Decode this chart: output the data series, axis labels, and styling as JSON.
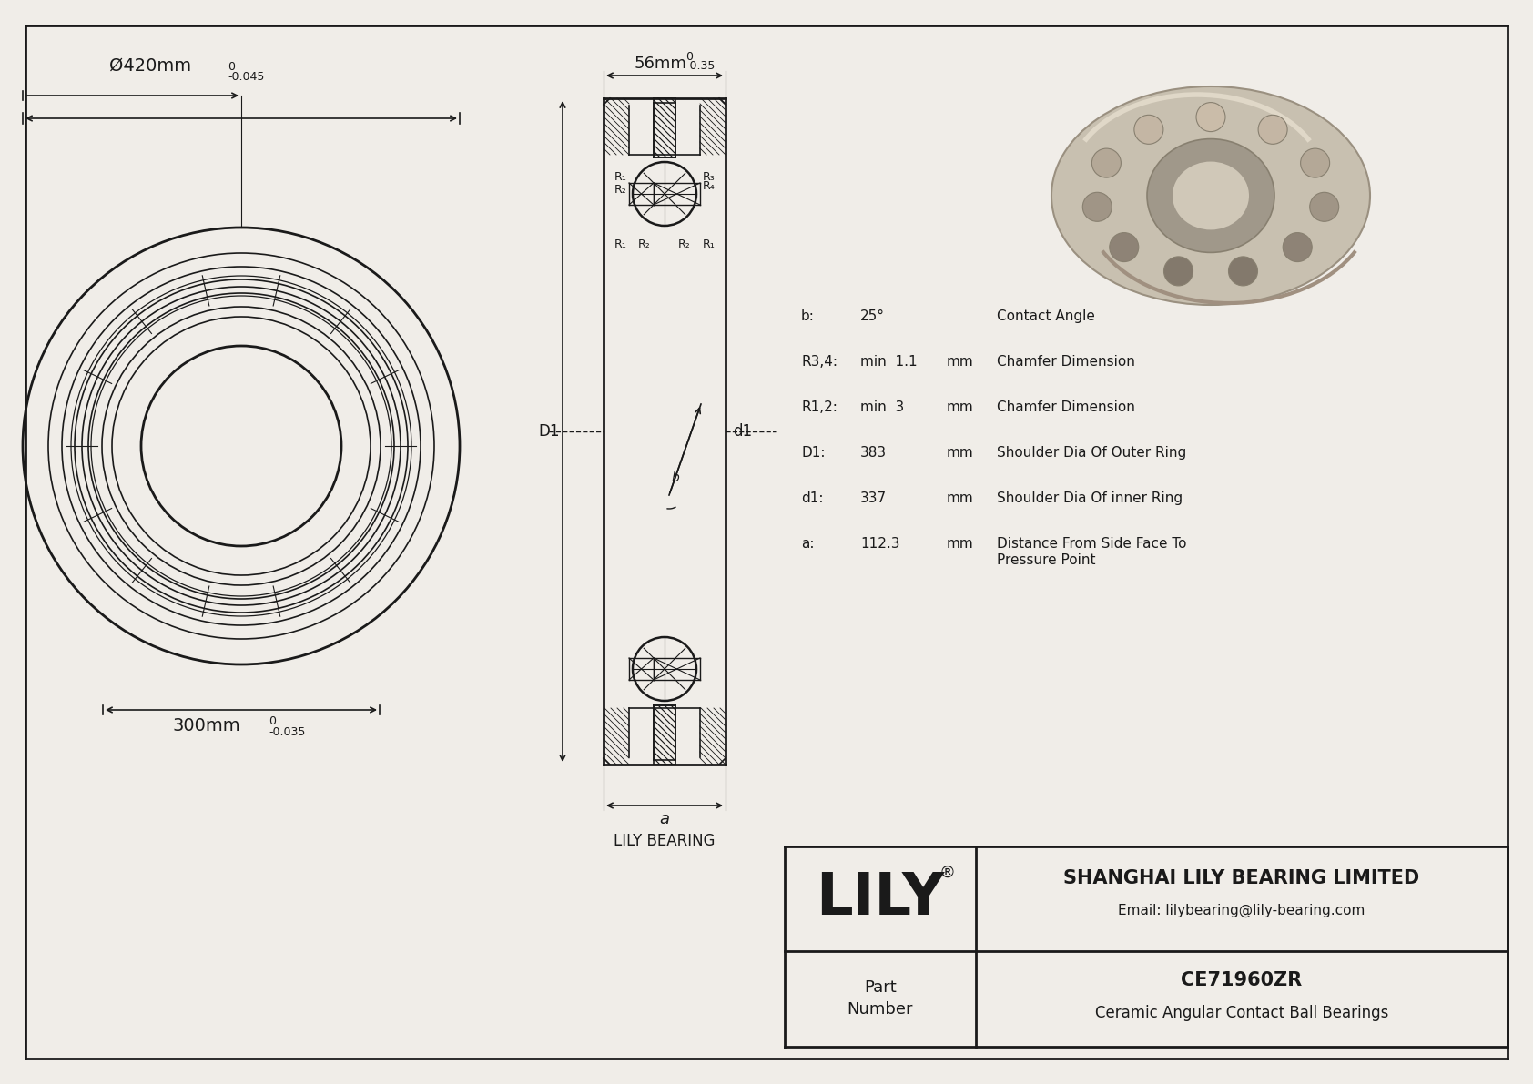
{
  "bg_color": "#f0ede8",
  "line_color": "#1a1a1a",
  "title_company": "SHANGHAI LILY BEARING LIMITED",
  "title_email": "Email: lilybearing@lily-bearing.com",
  "part_number": "CE71960ZR",
  "part_type": "Ceramic Angular Contact Ball Bearings",
  "brand": "LILY",
  "dim_outer": "Ø420mm",
  "dim_outer_tol": "-0.045",
  "dim_outer_tol_upper": "0",
  "dim_inner": "300mm",
  "dim_inner_tol": "-0.035",
  "dim_inner_tol_upper": "0",
  "dim_width": "56mm",
  "dim_width_tol": "-0.35",
  "dim_width_tol_upper": "0",
  "lily_bearing_label": "LILY BEARING",
  "label_a": "a",
  "label_D1": "D1",
  "label_d1": "d1",
  "specs": [
    {
      "label": "b:",
      "value": "25°",
      "unit": "",
      "desc": "Contact Angle",
      "desc2": ""
    },
    {
      "label": "R3,4:",
      "value": "min  1.1",
      "unit": "mm",
      "desc": "Chamfer Dimension",
      "desc2": ""
    },
    {
      "label": "R1,2:",
      "value": "min  3",
      "unit": "mm",
      "desc": "Chamfer Dimension",
      "desc2": ""
    },
    {
      "label": "D1:",
      "value": "383",
      "unit": "mm",
      "desc": "Shoulder Dia Of Outer Ring",
      "desc2": ""
    },
    {
      "label": "d1:",
      "value": "337",
      "unit": "mm",
      "desc": "Shoulder Dia Of inner Ring",
      "desc2": ""
    },
    {
      "label": "a:",
      "value": "112.3",
      "unit": "mm",
      "desc": "Distance From Side Face To",
      "desc2": "Pressure Point"
    }
  ]
}
